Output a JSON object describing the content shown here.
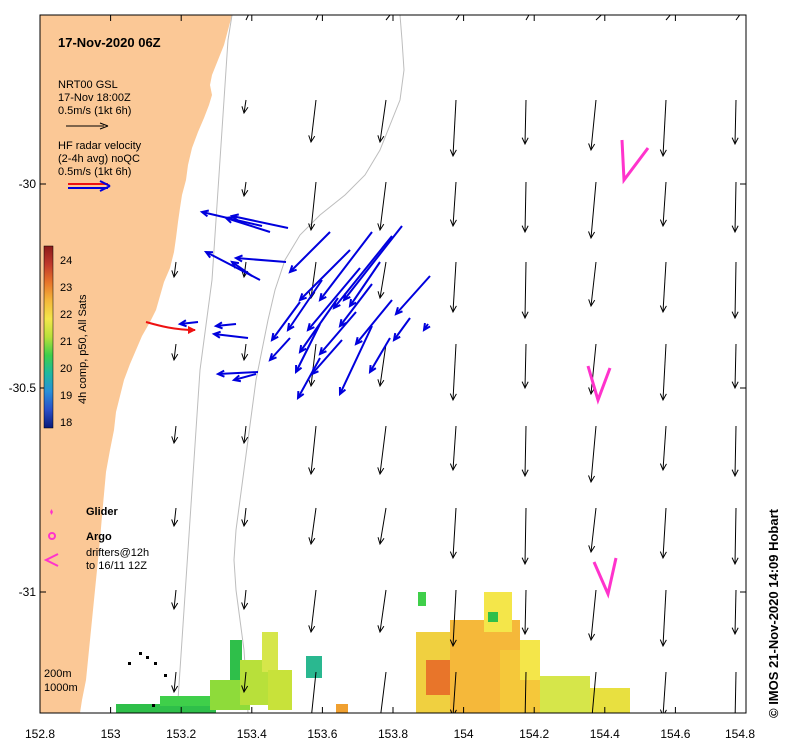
{
  "title": "17-Nov-2020 06Z",
  "legend": {
    "model_name": "NRT00 GSL",
    "model_time": "17-Nov 18:00Z",
    "model_scale": "0.5m/s (1kt 6h)",
    "radar_title": "HF radar velocity",
    "radar_avg": "(2-4h avg) noQC",
    "radar_scale": "0.5m/s (1kt 6h)",
    "glider": "Glider",
    "argo": "Argo",
    "drifters_line1": "drifters@12h",
    "drifters_line2": "to 16/11 12Z",
    "depth_200": "200m",
    "depth_1000": "1000m"
  },
  "colorbar": {
    "label": "4h comp, p50, All Sats",
    "ticks": [
      "24",
      "23",
      "22",
      "21",
      "20",
      "19",
      "18"
    ],
    "colors": [
      "#8b1a1a",
      "#c0392b",
      "#e8752a",
      "#f5b83a",
      "#f4e64a",
      "#b8e03a",
      "#3fcf4a",
      "#1fb8a0",
      "#2a8fd8",
      "#2a4fc8",
      "#0a1a7a"
    ]
  },
  "axes": {
    "lon_ticks": [
      "152.8",
      "153",
      "153.2",
      "153.4",
      "153.6",
      "153.8",
      "154",
      "154.2",
      "154.4",
      "154.6",
      "154.8"
    ],
    "lat_ticks": [
      "-30",
      "-30.5",
      "-31"
    ]
  },
  "credit": "© IMOS 21-Nov-2020 14:09 Hobart",
  "colors": {
    "land": "#fbc896",
    "radar_arrow": "#0000dd",
    "model_arrow": "#000000",
    "drifter": "#ff33cc",
    "argo_track": "#ee1111"
  }
}
